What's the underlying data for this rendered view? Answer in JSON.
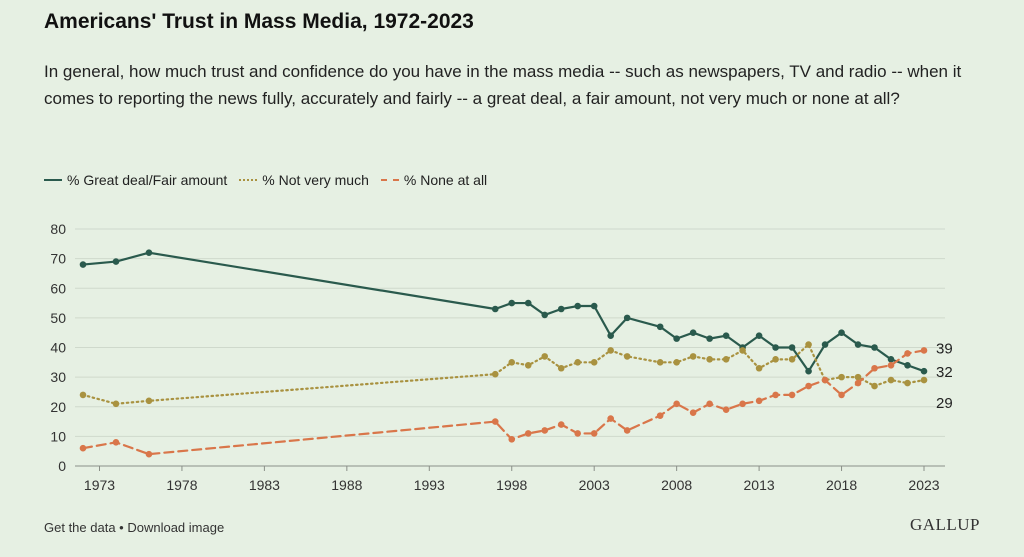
{
  "header": {
    "title": "Americans' Trust in Mass Media, 1972-2023",
    "subtitle": "In general, how much trust and confidence do you have in the mass media -- such as newspapers, TV and radio -- when it comes to reporting the news fully, accurately and fairly -- a great deal, a fair amount, not very much or none at all?"
  },
  "footer": {
    "get_data": "Get the data",
    "separator": " • ",
    "download": "Download image",
    "logo": "GALLUP"
  },
  "colors": {
    "great": "#2a5a4d",
    "notvery": "#a99240",
    "none": "#d9764a",
    "grid": "#cfd9cc",
    "background": "#e6f0e3"
  },
  "chart_data": {
    "type": "line",
    "title": "Americans' Trust in Mass Media, 1972-2023",
    "xlabel": "",
    "ylabel": "",
    "xlim": [
      1972,
      2023
    ],
    "ylim": [
      0,
      80
    ],
    "yticks": [
      0,
      10,
      20,
      30,
      40,
      50,
      60,
      70,
      80
    ],
    "xticks": [
      1973,
      1978,
      1983,
      1988,
      1993,
      1998,
      2003,
      2008,
      2013,
      2018,
      2023
    ],
    "grid": true,
    "legend_position": "top-left",
    "series": [
      {
        "key": "great",
        "name": "% Great deal/Fair amount",
        "style": "solid",
        "end_label": "32",
        "x": [
          1972,
          1974,
          1976,
          1997,
          1998,
          1999,
          2000,
          2001,
          2002,
          2003,
          2004,
          2005,
          2007,
          2008,
          2009,
          2010,
          2011,
          2012,
          2013,
          2014,
          2015,
          2016,
          2017,
          2018,
          2019,
          2020,
          2021,
          2022,
          2023
        ],
        "values": [
          68,
          69,
          72,
          53,
          55,
          55,
          51,
          53,
          54,
          54,
          44,
          50,
          47,
          43,
          45,
          43,
          44,
          40,
          44,
          40,
          40,
          32,
          41,
          45,
          41,
          40,
          36,
          34,
          32
        ]
      },
      {
        "key": "notvery",
        "name": "% Not very much",
        "style": "dotted",
        "end_label": "29",
        "x": [
          1972,
          1974,
          1976,
          1997,
          1998,
          1999,
          2000,
          2001,
          2002,
          2003,
          2004,
          2005,
          2007,
          2008,
          2009,
          2010,
          2011,
          2012,
          2013,
          2014,
          2015,
          2016,
          2017,
          2018,
          2019,
          2020,
          2021,
          2022,
          2023
        ],
        "values": [
          24,
          21,
          22,
          31,
          35,
          34,
          37,
          33,
          35,
          35,
          39,
          37,
          35,
          35,
          37,
          36,
          36,
          39,
          33,
          36,
          36,
          41,
          29,
          30,
          30,
          27,
          29,
          28,
          29
        ]
      },
      {
        "key": "none",
        "name": "% None at all",
        "style": "dashed",
        "end_label": "39",
        "x": [
          1972,
          1974,
          1976,
          1997,
          1998,
          1999,
          2000,
          2001,
          2002,
          2003,
          2004,
          2005,
          2007,
          2008,
          2009,
          2010,
          2011,
          2012,
          2013,
          2014,
          2015,
          2016,
          2017,
          2018,
          2019,
          2020,
          2021,
          2022,
          2023
        ],
        "values": [
          6,
          8,
          4,
          15,
          9,
          11,
          12,
          14,
          11,
          11,
          16,
          12,
          17,
          21,
          18,
          21,
          19,
          21,
          22,
          24,
          24,
          27,
          29,
          24,
          28,
          33,
          34,
          38,
          39
        ]
      }
    ]
  }
}
